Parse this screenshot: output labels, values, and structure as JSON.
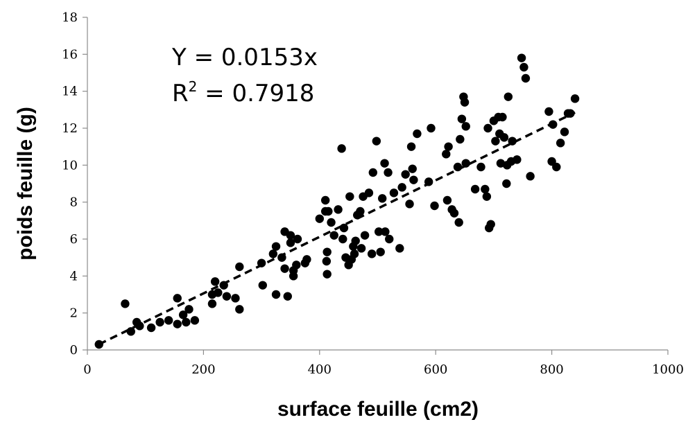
{
  "chart_data": {
    "type": "scatter",
    "xlabel": "surface feuille (cm2)",
    "ylabel": "poids feuille (g)",
    "xlim": [
      0,
      1000
    ],
    "ylim": [
      0,
      18
    ],
    "xticks": [
      "0",
      "200",
      "400",
      "600",
      "800",
      "1000"
    ],
    "yticks": [
      "0",
      "2",
      "4",
      "6",
      "8",
      "10",
      "12",
      "14",
      "16",
      "18"
    ],
    "grid": false,
    "legend": "none",
    "annotations": {
      "equation": "Y = 0.0153x",
      "r2_prefix": "R",
      "r2_sup": "2",
      "r2_value": " = 0.7918"
    },
    "trendline": {
      "slope": 0.0153,
      "x_start": 20,
      "x_end": 840,
      "style": "dashed"
    },
    "points": [
      [
        20,
        0.3
      ],
      [
        65,
        2.5
      ],
      [
        75,
        1.0
      ],
      [
        85,
        1.5
      ],
      [
        90,
        1.3
      ],
      [
        110,
        1.2
      ],
      [
        125,
        1.5
      ],
      [
        140,
        1.6
      ],
      [
        155,
        1.4
      ],
      [
        155,
        2.8
      ],
      [
        165,
        1.9
      ],
      [
        170,
        1.5
      ],
      [
        175,
        2.2
      ],
      [
        185,
        1.6
      ],
      [
        215,
        2.5
      ],
      [
        215,
        3.0
      ],
      [
        220,
        3.7
      ],
      [
        225,
        3.1
      ],
      [
        235,
        3.5
      ],
      [
        240,
        2.9
      ],
      [
        255,
        2.8
      ],
      [
        262,
        4.5
      ],
      [
        262,
        2.2
      ],
      [
        300,
        4.7
      ],
      [
        302,
        3.5
      ],
      [
        320,
        5.2
      ],
      [
        325,
        5.6
      ],
      [
        325,
        3.0
      ],
      [
        335,
        5.0
      ],
      [
        340,
        6.4
      ],
      [
        340,
        4.4
      ],
      [
        345,
        2.9
      ],
      [
        350,
        6.2
      ],
      [
        350,
        5.8
      ],
      [
        355,
        4.3
      ],
      [
        355,
        4.0
      ],
      [
        360,
        4.6
      ],
      [
        362,
        6.0
      ],
      [
        375,
        4.7
      ],
      [
        378,
        4.9
      ],
      [
        400,
        7.1
      ],
      [
        410,
        8.1
      ],
      [
        410,
        7.5
      ],
      [
        412,
        4.8
      ],
      [
        413,
        4.1
      ],
      [
        413,
        5.3
      ],
      [
        415,
        7.5
      ],
      [
        420,
        6.9
      ],
      [
        425,
        6.2
      ],
      [
        432,
        7.6
      ],
      [
        438,
        10.9
      ],
      [
        440,
        6.0
      ],
      [
        442,
        6.6
      ],
      [
        445,
        5.0
      ],
      [
        450,
        4.6
      ],
      [
        452,
        8.3
      ],
      [
        455,
        4.9
      ],
      [
        458,
        5.6
      ],
      [
        460,
        5.2
      ],
      [
        462,
        5.9
      ],
      [
        465,
        7.3
      ],
      [
        470,
        7.5
      ],
      [
        472,
        5.5
      ],
      [
        475,
        8.3
      ],
      [
        478,
        6.2
      ],
      [
        485,
        8.5
      ],
      [
        490,
        5.2
      ],
      [
        492,
        9.6
      ],
      [
        498,
        11.3
      ],
      [
        502,
        6.4
      ],
      [
        505,
        5.3
      ],
      [
        508,
        8.2
      ],
      [
        512,
        10.1
      ],
      [
        513,
        6.4
      ],
      [
        518,
        9.6
      ],
      [
        520,
        6.0
      ],
      [
        528,
        8.5
      ],
      [
        538,
        5.5
      ],
      [
        542,
        8.8
      ],
      [
        548,
        9.5
      ],
      [
        555,
        7.9
      ],
      [
        558,
        11.0
      ],
      [
        560,
        9.8
      ],
      [
        562,
        9.2
      ],
      [
        568,
        11.7
      ],
      [
        588,
        9.1
      ],
      [
        592,
        12.0
      ],
      [
        598,
        7.8
      ],
      [
        618,
        10.6
      ],
      [
        620,
        8.1
      ],
      [
        622,
        11.0
      ],
      [
        628,
        7.6
      ],
      [
        632,
        7.4
      ],
      [
        638,
        9.9
      ],
      [
        640,
        6.9
      ],
      [
        642,
        11.4
      ],
      [
        645,
        12.5
      ],
      [
        648,
        13.7
      ],
      [
        650,
        13.4
      ],
      [
        652,
        10.1
      ],
      [
        652,
        12.1
      ],
      [
        668,
        8.7
      ],
      [
        678,
        9.9
      ],
      [
        685,
        8.7
      ],
      [
        688,
        8.3
      ],
      [
        690,
        12.0
      ],
      [
        692,
        6.6
      ],
      [
        695,
        6.8
      ],
      [
        700,
        12.4
      ],
      [
        703,
        11.3
      ],
      [
        708,
        12.6
      ],
      [
        710,
        11.7
      ],
      [
        712,
        10.1
      ],
      [
        715,
        12.6
      ],
      [
        718,
        11.5
      ],
      [
        722,
        9.0
      ],
      [
        723,
        10.0
      ],
      [
        725,
        13.7
      ],
      [
        730,
        10.2
      ],
      [
        732,
        11.3
      ],
      [
        740,
        10.3
      ],
      [
        748,
        15.8
      ],
      [
        752,
        15.3
      ],
      [
        755,
        14.7
      ],
      [
        763,
        9.4
      ],
      [
        795,
        12.9
      ],
      [
        800,
        10.2
      ],
      [
        802,
        12.2
      ],
      [
        808,
        9.9
      ],
      [
        815,
        11.2
      ],
      [
        822,
        11.8
      ],
      [
        828,
        12.8
      ],
      [
        832,
        12.8
      ],
      [
        840,
        13.6
      ]
    ]
  }
}
